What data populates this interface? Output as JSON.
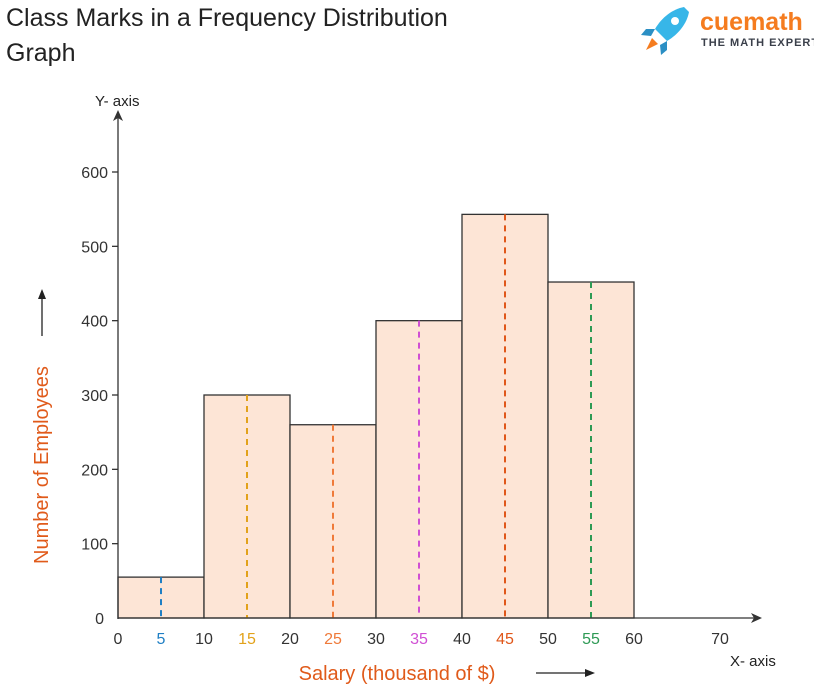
{
  "chart_data": {
    "type": "bar",
    "title_lines": [
      "Class Marks in a Frequency Distribution",
      "Graph"
    ],
    "xlabel": "Salary (thousand of $)",
    "ylabel": "Number of Employees",
    "x_axis_name": "X- axis",
    "y_axis_name": "Y- axis",
    "xlim": [
      0,
      70
    ],
    "ylim": [
      0,
      600
    ],
    "bins": [
      {
        "from": 0,
        "to": 10,
        "value": 55,
        "class_mark": "5",
        "mark_color": "#1f7fc4"
      },
      {
        "from": 10,
        "to": 20,
        "value": 300,
        "class_mark": "15",
        "mark_color": "#e2a21b"
      },
      {
        "from": 20,
        "to": 30,
        "value": 260,
        "class_mark": "25",
        "mark_color": "#ef7a3a"
      },
      {
        "from": 30,
        "to": 40,
        "value": 400,
        "class_mark": "35",
        "mark_color": "#d04fd4"
      },
      {
        "from": 40,
        "to": 50,
        "value": 543,
        "class_mark": "45",
        "mark_color": "#e0571a"
      },
      {
        "from": 50,
        "to": 60,
        "value": 452,
        "class_mark": "55",
        "mark_color": "#2e9a55"
      }
    ],
    "x_ticks": [
      "0",
      "10",
      "20",
      "30",
      "40",
      "50",
      "60",
      "70"
    ],
    "y_ticks": [
      "0",
      "100",
      "200",
      "300",
      "400",
      "500",
      "600"
    ],
    "bar_fill": "#fde5d6",
    "bar_stroke": "#333333",
    "label_color": "#e05a1a"
  },
  "logo": {
    "word": "cuemath",
    "tagline": "THE MATH EXPERT"
  }
}
